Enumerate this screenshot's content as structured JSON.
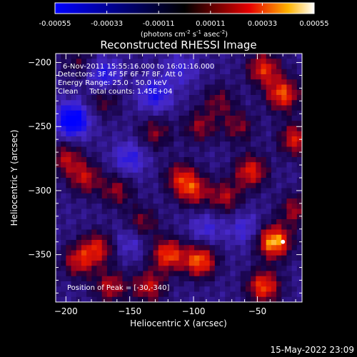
{
  "chart_data": {
    "type": "heatmap",
    "title": "Reconstructed RHESSI Image",
    "xlabel": "Heliocentric X (arcsec)",
    "ylabel": "Heliocentric Y (arcsec)",
    "xlim": [
      -208,
      -15
    ],
    "ylim": [
      -387,
      -193
    ],
    "x_ticks": [
      -200,
      -150,
      -100,
      -50
    ],
    "y_ticks": [
      -200,
      -250,
      -300,
      -350
    ],
    "colorbar": {
      "min": -0.00055,
      "max": 0.00055,
      "ticks": [
        "-0.00055",
        "-0.00033",
        "-0.00011",
        "0.00011",
        "0.00033",
        "0.00055"
      ],
      "units_label_parts": [
        "(photons cm",
        "-2",
        " s",
        "-1",
        " asec",
        "-2",
        ")"
      ]
    },
    "annotations": [
      "6-Nov-2011 15:55:16.000 to 16:01:16.000",
      "Detectors: 3F 4F 5F 6F 7F 8F, Att 0",
      "Energy Range: 25.0 - 50.0 keV",
      "Clean     Total counts: 1.45E+04"
    ],
    "peak_label": "Position of Peak = [-30,-340]",
    "peak_position": [
      -30,
      -340
    ],
    "footer_date": "15-May-2022 23:09",
    "hotspots": [
      {
        "x": -37,
        "y": -340,
        "v": 0.00055
      },
      {
        "x": -95,
        "y": -355,
        "v": 0.00045
      },
      {
        "x": -120,
        "y": -350,
        "v": 0.00042
      },
      {
        "x": -45,
        "y": -375,
        "v": 0.00042
      },
      {
        "x": -175,
        "y": -345,
        "v": 0.00032
      },
      {
        "x": -190,
        "y": -355,
        "v": 0.0003
      },
      {
        "x": -165,
        "y": -375,
        "v": 0.00028
      },
      {
        "x": -135,
        "y": -375,
        "v": 0.0003
      },
      {
        "x": -30,
        "y": -225,
        "v": 0.00042
      },
      {
        "x": -45,
        "y": -205,
        "v": 0.00036
      },
      {
        "x": -20,
        "y": -260,
        "v": 0.00034
      },
      {
        "x": -55,
        "y": -285,
        "v": 0.00036
      },
      {
        "x": -100,
        "y": -300,
        "v": 0.0003
      },
      {
        "x": -110,
        "y": -290,
        "v": 0.00028
      },
      {
        "x": -75,
        "y": -305,
        "v": 0.00026
      },
      {
        "x": -185,
        "y": -290,
        "v": 0.00028
      },
      {
        "x": -200,
        "y": -275,
        "v": 0.00026
      },
      {
        "x": -160,
        "y": -300,
        "v": 0.00022
      },
      {
        "x": -95,
        "y": -250,
        "v": 0.00022
      },
      {
        "x": -130,
        "y": -255,
        "v": 0.0002
      },
      {
        "x": -170,
        "y": -230,
        "v": 0.00016
      },
      {
        "x": -190,
        "y": -200,
        "v": 0.00012
      },
      {
        "x": -80,
        "y": -230,
        "v": 0.00018
      },
      {
        "x": -65,
        "y": -250,
        "v": 0.0002
      },
      {
        "x": -140,
        "y": -325,
        "v": 0.0002
      },
      {
        "x": -20,
        "y": -315,
        "v": 0.00024
      },
      {
        "x": -195,
        "y": -245,
        "v": -0.00055
      },
      {
        "x": -170,
        "y": -210,
        "v": -0.00033
      },
      {
        "x": -130,
        "y": -225,
        "v": -0.00033
      },
      {
        "x": -150,
        "y": -275,
        "v": -0.00028
      },
      {
        "x": -90,
        "y": -330,
        "v": -0.00022
      },
      {
        "x": -60,
        "y": -330,
        "v": -0.00022
      },
      {
        "x": -150,
        "y": -340,
        "v": -0.0002
      },
      {
        "x": -110,
        "y": -205,
        "v": -0.00022
      }
    ]
  }
}
